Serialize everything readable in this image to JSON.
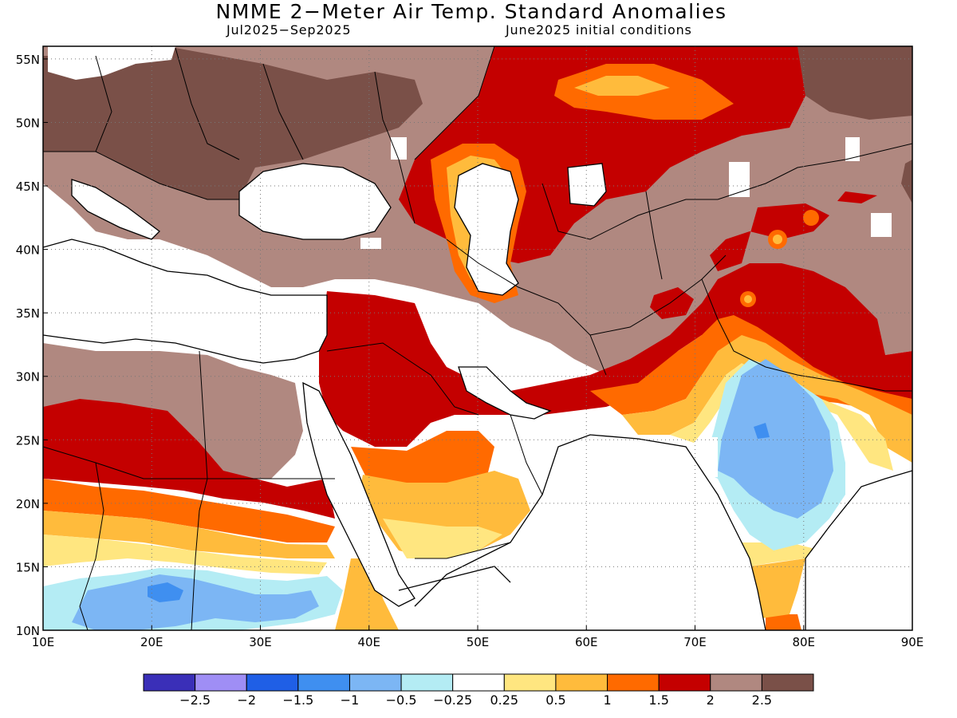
{
  "title": "NMME 2−Meter Air Temp. Standard Anomalies",
  "subtitle_left": "Jul2025−Sep2025",
  "subtitle_right": "June2025 initial conditions",
  "map": {
    "lon_range": [
      10,
      90
    ],
    "lat_range": [
      10,
      56
    ],
    "lon_ticks": [
      {
        "v": 10,
        "label": "10E"
      },
      {
        "v": 20,
        "label": "20E"
      },
      {
        "v": 30,
        "label": "30E"
      },
      {
        "v": 40,
        "label": "40E"
      },
      {
        "v": 50,
        "label": "50E"
      },
      {
        "v": 60,
        "label": "60E"
      },
      {
        "v": 70,
        "label": "70E"
      },
      {
        "v": 80,
        "label": "80E"
      },
      {
        "v": 90,
        "label": "90E"
      }
    ],
    "lat_ticks": [
      {
        "v": 10,
        "label": "10N"
      },
      {
        "v": 15,
        "label": "15N"
      },
      {
        "v": 20,
        "label": "20N"
      },
      {
        "v": 25,
        "label": "25N"
      },
      {
        "v": 30,
        "label": "30N"
      },
      {
        "v": 35,
        "label": "35N"
      },
      {
        "v": 40,
        "label": "40N"
      },
      {
        "v": 45,
        "label": "45N"
      },
      {
        "v": 50,
        "label": "50N"
      },
      {
        "v": 55,
        "label": "55N"
      }
    ],
    "grid": "dotted"
  },
  "colorbar": {
    "colors": [
      "#3a2fb8",
      "#9f8ef5",
      "#1f5fe6",
      "#3f8ff0",
      "#7cb6f4",
      "#b4ecf4",
      "#ffffff",
      "#ffe680",
      "#ffbb3c",
      "#ff6a00",
      "#c40000",
      "#b08880",
      "#7a5048"
    ],
    "labels": [
      "−2.5",
      "−2",
      "−1.5",
      "−1",
      "−0.5",
      "−0.25",
      "0.25",
      "0.5",
      "1",
      "1.5",
      "2",
      "2.5"
    ]
  }
}
